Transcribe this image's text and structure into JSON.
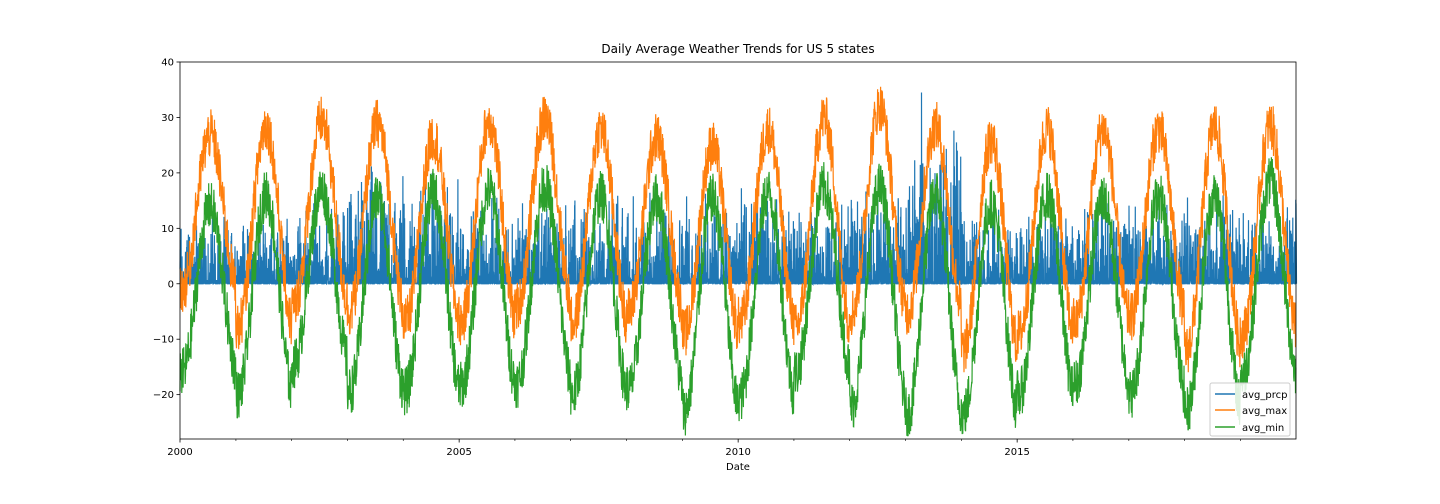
{
  "chart_data": {
    "type": "line",
    "title": "Daily Average Weather Trends for US 5 states",
    "xlabel": "Date",
    "ylabel": "",
    "x_range": [
      "2000-01-01",
      "2019-12-31"
    ],
    "ylim": [
      -28,
      40
    ],
    "x_ticks": [
      {
        "date": "2000-01-01",
        "label": "2000"
      },
      {
        "date": "2005-01-01",
        "label": "2005"
      },
      {
        "date": "2010-01-01",
        "label": "2010"
      },
      {
        "date": "2015-01-01",
        "label": "2015"
      }
    ],
    "x_minor_years": [
      2001,
      2002,
      2003,
      2004,
      2006,
      2007,
      2008,
      2009,
      2011,
      2012,
      2013,
      2014,
      2016,
      2017,
      2018,
      2019
    ],
    "y_ticks": [
      -20,
      -10,
      0,
      10,
      20,
      30,
      40
    ],
    "y_tick_labels": [
      "−20",
      "−10",
      "0",
      "10",
      "20",
      "30",
      "40"
    ],
    "grid": false,
    "legend_position": "lower right",
    "series": [
      {
        "name": "avg_prcp",
        "color": "#1f77b4",
        "summary": "daily precipitation, baseline near 0 with frequent spikes mostly under 15, max about 34.5 in 2013",
        "annual_peak_max": [
          13.5,
          13.0,
          16.5,
          23.0,
          21.5,
          16.5,
          17.0,
          17.5,
          17.5,
          17.0,
          17.5,
          16.0,
          20.0,
          34.5,
          14.5,
          16.0,
          17.0,
          17.0,
          17.0,
          16.5
        ],
        "notable_values": [
          {
            "date": "2013-04-15",
            "value": 34.5
          },
          {
            "date": "2019-12-31",
            "value": 14.5
          }
        ]
      },
      {
        "name": "avg_max",
        "color": "#ff7f0e",
        "summary": "daily average maximum temperature, seasonal cycle with summer peaks near 30-37 and winter lows near -10 to 0",
        "annual_summer_peak": [
          32.0,
          33.5,
          34.5,
          34.0,
          31.5,
          34.5,
          35.0,
          33.0,
          31.5,
          30.0,
          33.0,
          35.0,
          37.0,
          33.5,
          31.0,
          33.0,
          33.0,
          33.0,
          33.5,
          33.5
        ],
        "annual_winter_low": [
          -2.0,
          -9.0,
          -5.0,
          -6.0,
          -8.0,
          -8.0,
          -5.0,
          -8.0,
          -6.0,
          -10.0,
          -8.0,
          -9.0,
          -6.0,
          -6.0,
          -13.0,
          -10.0,
          -8.0,
          -7.0,
          -13.0,
          -10.0
        ]
      },
      {
        "name": "avg_min",
        "color": "#2ca02c",
        "summary": "daily average minimum temperature, seasonal cycle with summer peaks near 19-23 and winter lows near -15 to -24",
        "annual_summer_peak": [
          19.0,
          21.0,
          22.0,
          20.5,
          21.5,
          22.0,
          22.5,
          21.0,
          20.5,
          20.5,
          21.5,
          22.5,
          22.5,
          21.5,
          19.5,
          21.0,
          20.5,
          21.0,
          21.0,
          23.5
        ],
        "annual_winter_low": [
          -17.0,
          -21.0,
          -15.5,
          -20.5,
          -20.5,
          -19.5,
          -19.0,
          -21.0,
          -20.0,
          -24.0,
          -21.5,
          -17.0,
          -23.0,
          -24.5,
          -24.5,
          -21.0,
          -19.0,
          -21.0,
          -24.0,
          -17.5
        ]
      }
    ]
  }
}
